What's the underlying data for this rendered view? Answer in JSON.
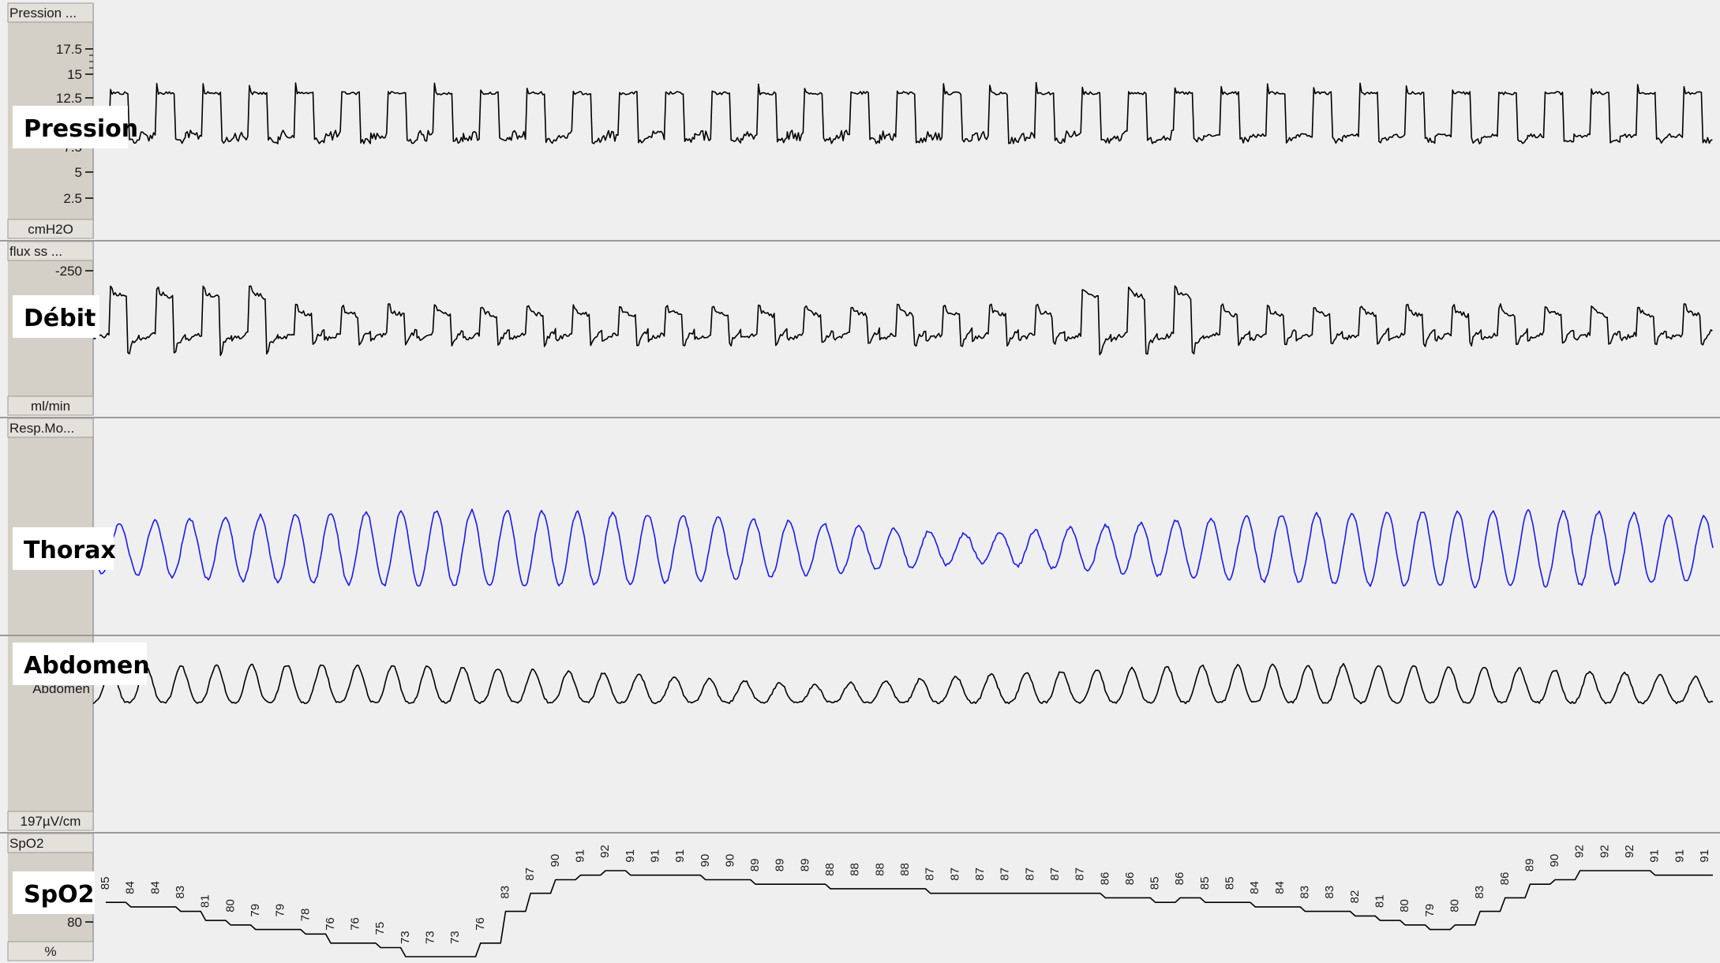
{
  "chart_data": {
    "type": "line",
    "channels": [
      {
        "id": "pression",
        "header": "Pression ...",
        "unit": "cmH2O",
        "label": "Pression",
        "ticks": [
          "17.5",
          "15",
          "12.5",
          "7.5",
          "5",
          "2.5"
        ],
        "color": "#000000"
      },
      {
        "id": "debit",
        "header": "flux ss ...",
        "unit": "ml/min",
        "label": "Débit",
        "ticks": [
          "-250"
        ],
        "color": "#000000"
      },
      {
        "id": "thorax",
        "header": "Resp.Mo...",
        "unit": "",
        "label": "Thorax",
        "ticks": [],
        "color": "#1a1aee"
      },
      {
        "id": "abdomen",
        "header": "",
        "unit": "197µV/cm",
        "label": "Abdomen",
        "sublabel": "Abdomen",
        "ticks": [],
        "color": "#000000"
      },
      {
        "id": "spo2",
        "header": "SpO2",
        "unit": "%",
        "label": "SpO2",
        "ticks": [
          "80"
        ],
        "color": "#000000"
      }
    ],
    "spo2_values": [
      85,
      84,
      84,
      83,
      81,
      80,
      79,
      79,
      78,
      76,
      76,
      75,
      73,
      73,
      73,
      76,
      83,
      87,
      90,
      91,
      92,
      91,
      91,
      91,
      90,
      90,
      89,
      89,
      89,
      88,
      88,
      88,
      88,
      87,
      87,
      87,
      87,
      87,
      87,
      87,
      86,
      86,
      85,
      86,
      85,
      85,
      84,
      84,
      83,
      83,
      82,
      81,
      80,
      79,
      80,
      83,
      86,
      89,
      90,
      92,
      92,
      92,
      91,
      91,
      91
    ]
  }
}
